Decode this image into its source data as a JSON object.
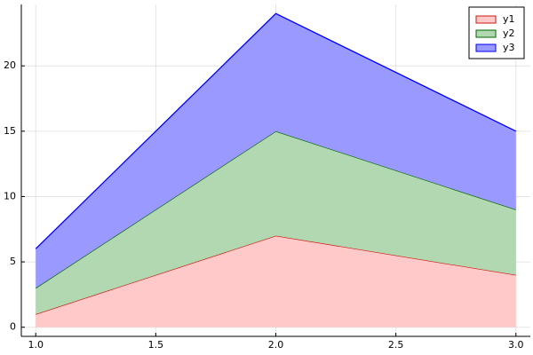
{
  "chart_data": {
    "type": "stacked_area",
    "x": [
      1,
      2,
      3
    ],
    "series": [
      {
        "name": "y1",
        "color": "#c8190f",
        "fill": "#ffc9c9",
        "values": [
          1,
          7,
          4
        ]
      },
      {
        "name": "y2",
        "color": "#006400",
        "fill": "#b2d8b2",
        "values": [
          2,
          8,
          5
        ]
      },
      {
        "name": "y3",
        "color": "#0000ff",
        "fill": "#9999ff",
        "values": [
          3,
          9,
          6
        ]
      }
    ],
    "xlim": [
      0.94,
      3.06
    ],
    "xticks": [
      {
        "value": 1,
        "label": "1.0"
      },
      1.5,
      {
        "value": 2,
        "label": "2.0"
      },
      2.5,
      {
        "value": 3,
        "label": "3.0"
      }
    ],
    "ylim": [
      -0.7,
      24.7
    ],
    "yticks": [
      0,
      5,
      10,
      15,
      20
    ],
    "grid": true,
    "legend": "top-right"
  }
}
